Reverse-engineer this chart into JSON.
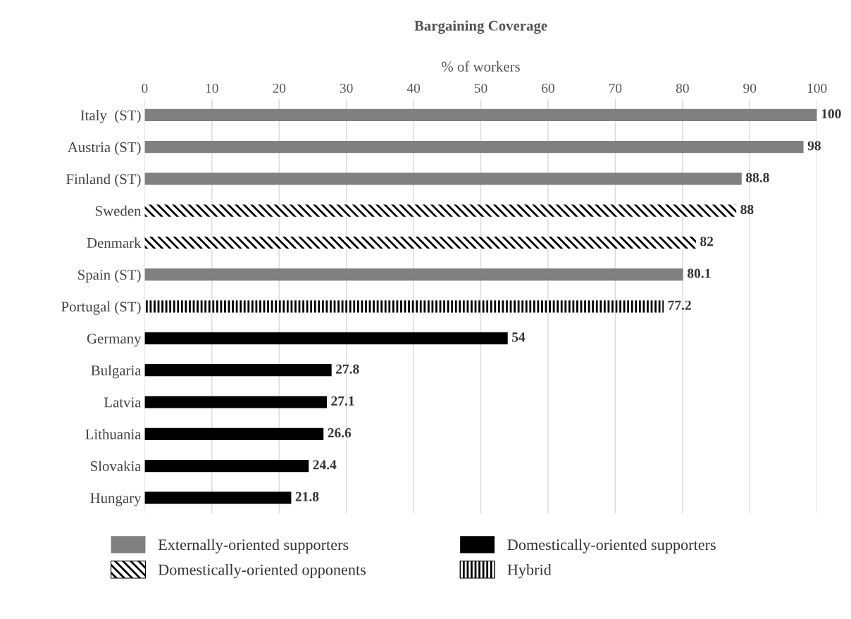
{
  "chart_data": {
    "type": "bar",
    "orientation": "horizontal",
    "title": "Bargaining Coverage",
    "xlabel": "% of workers",
    "categories": [
      "Italy  (ST)",
      "Austria (ST)",
      "Finland (ST)",
      "Sweden",
      "Denmark",
      "Spain (ST)",
      "Portugal (ST)",
      "Germany",
      "Bulgaria",
      "Latvia",
      "Lithuania",
      "Slovakia",
      "Hungary"
    ],
    "series": [
      {
        "name": "Externally-oriented supporters",
        "color": "#808080",
        "values": [
          100,
          98,
          88.8,
          null,
          null,
          80.1,
          null,
          null,
          null,
          null,
          null,
          null,
          null
        ]
      },
      {
        "name": "Domestically-oriented opponents",
        "color": "#000000",
        "values": [
          null,
          null,
          null,
          88,
          82,
          null,
          null,
          null,
          null,
          null,
          null,
          null,
          null
        ]
      },
      {
        "name": "Domestically-oriented supporters",
        "color": "#000000",
        "values": [
          null,
          null,
          null,
          null,
          null,
          null,
          null,
          54,
          27.8,
          27.1,
          26.6,
          24.4,
          21.8
        ]
      },
      {
        "name": "Hybrid",
        "color": "#000000",
        "values": [
          null,
          null,
          null,
          null,
          null,
          null,
          77.2,
          null,
          null,
          null,
          null,
          null,
          null
        ]
      }
    ],
    "xlim": [
      0,
      100
    ],
    "xticks": [
      0,
      10,
      20,
      30,
      40,
      50,
      60,
      70,
      80,
      90,
      100
    ],
    "grid": "x",
    "legend": "bottom",
    "data_labels": true
  }
}
